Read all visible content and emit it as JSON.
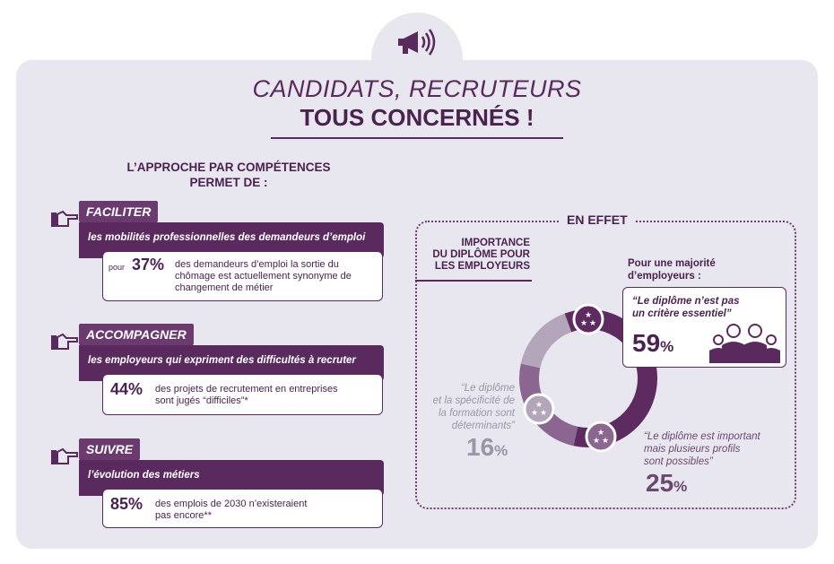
{
  "header": {
    "icon": "megaphone-icon",
    "title_line1": "CANDIDATS, RECRUTEURS",
    "title_line2": "TOUS CONCERNÉS !"
  },
  "intro": {
    "line1": "L’APPROCHE PAR COMPÉTENCES",
    "line2": "PERMET DE :"
  },
  "sections": [
    {
      "tag": "FACILITER",
      "band": "les mobilités professionnelles des demandeurs d’emploi",
      "prefix": "pour",
      "percent": "37%",
      "desc_line1": "des demandeurs d’emploi la sortie du",
      "desc_line2": "chômage est actuellement synonyme de",
      "desc_line3": "changement de métier"
    },
    {
      "tag": "ACCOMPAGNER",
      "band": "les employeurs qui expriment des difficultés à recruter",
      "percent": "44%",
      "desc_line1": "des projets de recrutement en entreprises",
      "desc_line2": "sont jugés “difficiles”*"
    },
    {
      "tag": "SUIVRE",
      "band": "l’évolution des métiers",
      "percent": "85%",
      "desc_line1": "des emplois de 2030 n’existeraient",
      "desc_line2": "pas encore**"
    }
  ],
  "effet": {
    "label": "EN EFFET",
    "importance_line1": "IMPORTANCE",
    "importance_line2": "DU DIPLÔME POUR",
    "importance_line3": "LES EMPLOYEURS",
    "majorite_line1": "Pour une majorité",
    "majorite_line2": "d’employeurs :",
    "quote59_line1": "“Le diplôme n’est pas",
    "quote59_line2": "un critère essentiel”",
    "pct59": "59",
    "quote16_line1": "“Le diplôme",
    "quote16_line2": "et la spécificité de",
    "quote16_line3": "la formation sont",
    "quote16_line4": "déterminants”",
    "pct16": "16",
    "quote25_line1": "“Le diplôme est important",
    "quote25_line2": "mais plusieurs profils",
    "quote25_line3": "sont possibles”",
    "pct25": "25",
    "percent_sign": "%"
  },
  "chart_data": {
    "type": "pie",
    "donut": true,
    "categories": [
      "Le diplôme n’est pas un critère essentiel",
      "Le diplôme est important mais plusieurs profils sont possibles",
      "Le diplôme et la spécificité de la formation sont déterminants"
    ],
    "values": [
      59,
      25,
      16
    ],
    "colors": [
      "#5e2b61",
      "#8a6690",
      "#b3a6ba"
    ]
  }
}
